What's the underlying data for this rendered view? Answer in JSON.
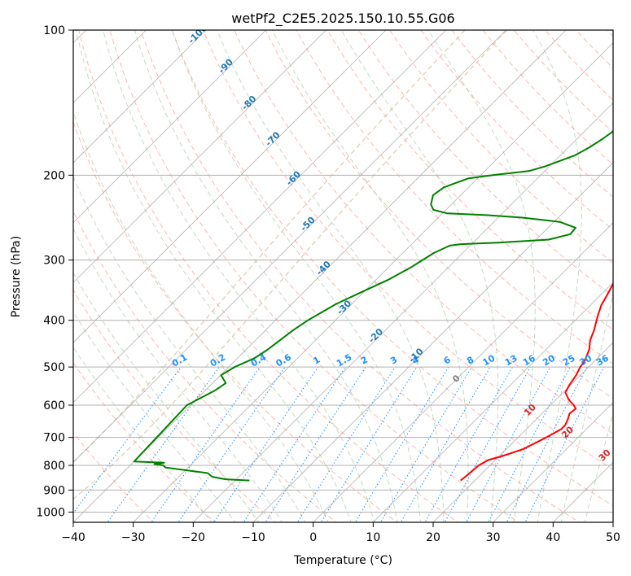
{
  "chart_data": {
    "type": "line",
    "title": "wetPf2_C2E5.2025.150.10.55.G06",
    "xlabel": "Temperature (°C)",
    "ylabel": "Pressure (hPa)",
    "xlim": [
      -40,
      50
    ],
    "ylim": [
      1050,
      100
    ],
    "y_scale": "log",
    "x_ticks": [
      -40,
      -30,
      -20,
      -10,
      0,
      10,
      20,
      30,
      40,
      50
    ],
    "y_ticks": [
      100,
      200,
      300,
      400,
      500,
      600,
      700,
      800,
      900,
      1000
    ],
    "grid": true,
    "skew": 45,
    "series": [
      {
        "color": "#ff0000",
        "points": [
          [
            17.6,
            860
          ],
          [
            17.8,
            840
          ],
          [
            18.1,
            800
          ],
          [
            18.8,
            780
          ],
          [
            20.5,
            765
          ],
          [
            22.8,
            740
          ],
          [
            24.7,
            700
          ],
          [
            25.8,
            672
          ],
          [
            25.8,
            660
          ],
          [
            25.2,
            640
          ],
          [
            24.6,
            625
          ],
          [
            24.8,
            610
          ],
          [
            23.9,
            600
          ],
          [
            22.2,
            585
          ],
          [
            20.4,
            565
          ],
          [
            19.8,
            545
          ],
          [
            19.3,
            520
          ],
          [
            18.6,
            500
          ],
          [
            18.3,
            485
          ],
          [
            17.2,
            460
          ],
          [
            15.8,
            440
          ],
          [
            14.8,
            420
          ],
          [
            12.9,
            390
          ],
          [
            11.8,
            372
          ],
          [
            11.1,
            355
          ],
          [
            10.4,
            340
          ],
          [
            9.6,
            320
          ],
          [
            8.0,
            300
          ],
          [
            6.4,
            280
          ],
          [
            5.5,
            265
          ],
          [
            5.4,
            250
          ],
          [
            5.4,
            235
          ],
          [
            4.7,
            215
          ],
          [
            3.9,
            200
          ],
          [
            3.4,
            185
          ],
          [
            4.2,
            160
          ],
          [
            4.5,
            148
          ],
          [
            4.0,
            135
          ],
          [
            4.8,
            125
          ],
          [
            6.8,
            112
          ],
          [
            9.3,
            105
          ],
          [
            12.2,
            100
          ]
        ]
      },
      {
        "color": "#008000",
        "points": [
          [
            -17.6,
            860
          ],
          [
            -21.8,
            855
          ],
          [
            -24.4,
            845
          ],
          [
            -25.8,
            830
          ],
          [
            -33.8,
            808
          ],
          [
            -34.5,
            800
          ],
          [
            -36.2,
            795
          ],
          [
            -34.8,
            790
          ],
          [
            -40.0,
            785
          ],
          [
            -40.6,
            600
          ],
          [
            -38.4,
            560
          ],
          [
            -37.8,
            540
          ],
          [
            -39.9,
            520
          ],
          [
            -39.0,
            500
          ],
          [
            -37.2,
            480
          ],
          [
            -36.4,
            460
          ],
          [
            -35.4,
            420
          ],
          [
            -34.6,
            400
          ],
          [
            -32.6,
            370
          ],
          [
            -30.4,
            350
          ],
          [
            -28.0,
            330
          ],
          [
            -26.2,
            310
          ],
          [
            -24.8,
            290
          ],
          [
            -23.4,
            280
          ],
          [
            -21.8,
            278
          ],
          [
            -15.8,
            276
          ],
          [
            -7.9,
            272
          ],
          [
            -5.2,
            265
          ],
          [
            -5.4,
            257
          ],
          [
            -9.0,
            250
          ],
          [
            -15.8,
            245
          ],
          [
            -22.4,
            242
          ],
          [
            -29.2,
            240
          ],
          [
            -32.1,
            236
          ],
          [
            -33.4,
            230
          ],
          [
            -34.6,
            220
          ],
          [
            -34.1,
            212
          ],
          [
            -31.5,
            203
          ],
          [
            -28.0,
            200
          ],
          [
            -22.6,
            196
          ],
          [
            -20.8,
            192
          ],
          [
            -17.6,
            182
          ],
          [
            -16.5,
            175
          ],
          [
            -15.7,
            168
          ],
          [
            -14.9,
            158
          ],
          [
            -12.6,
            148
          ],
          [
            -10.2,
            140
          ],
          [
            -7.6,
            133
          ],
          [
            -6.3,
            127
          ],
          [
            -4.9,
            121
          ],
          [
            -4.6,
            116
          ],
          [
            -3.7,
            110
          ],
          [
            -3.2,
            106
          ],
          [
            -3.6,
            100
          ]
        ]
      }
    ],
    "reference_lines": {
      "dry_adiabats_color": "#fa8072",
      "moist_adiabats_color": "#8fbc8f",
      "mixing_ratio_color": "#1e90ff",
      "grid_color": "#b0b0b0",
      "tan_curve_color": "#d2b48c",
      "mixing_ratio_labels": [
        "0.1",
        "0.2",
        "0.4",
        "0.6",
        "1",
        "1.5",
        "2",
        "3",
        "4",
        "6",
        "8",
        "10",
        "13",
        "16",
        "20",
        "25",
        "30",
        "36"
      ],
      "mixing_ratio_label_pressure": 500,
      "blue_labels": [
        "-100",
        "-90",
        "-80",
        "-70",
        "-60",
        "-50",
        "-40",
        "-30",
        "-20",
        "-10"
      ],
      "blue_label_color": "#1f77b4",
      "red_labels": [
        "10",
        "20",
        "30",
        "40"
      ],
      "red_label_color": "#d62728",
      "zero_label": "0",
      "zero_label_color": "#808080"
    }
  }
}
